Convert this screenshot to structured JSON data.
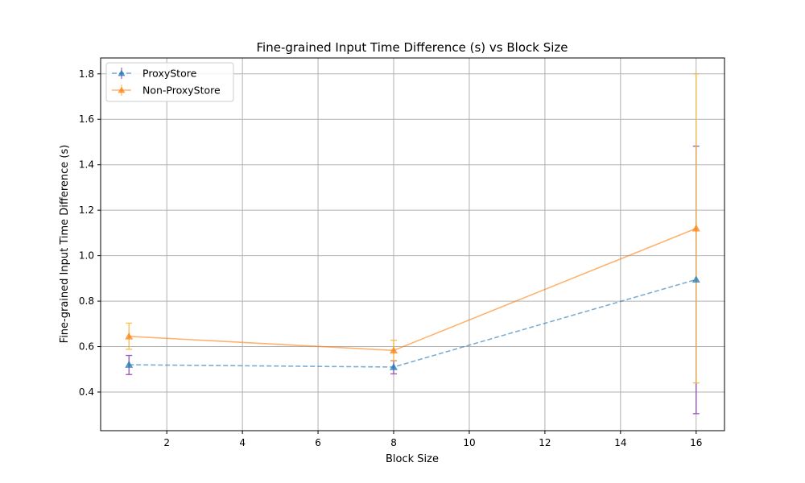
{
  "chart_data": {
    "type": "line",
    "title": "Fine-grained Input Time Difference (s) vs Block Size",
    "xlabel": "Block Size",
    "ylabel": "Fine-grained Input Time Difference (s)",
    "xlim": [
      0.25,
      16.75
    ],
    "ylim": [
      0.23,
      1.87
    ],
    "xticks": [
      2,
      4,
      6,
      8,
      10,
      12,
      14,
      16
    ],
    "yticks": [
      0.4,
      0.6,
      0.8,
      1.0,
      1.2,
      1.4,
      1.6,
      1.8
    ],
    "grid": true,
    "legend_position": "top-left",
    "x": [
      1,
      8,
      16
    ],
    "series": [
      {
        "name": "ProxyStore",
        "values": [
          0.52,
          0.51,
          0.895
        ],
        "error_low": [
          0.477,
          0.48,
          0.305
        ],
        "error_high": [
          0.561,
          0.538,
          1.482
        ],
        "color": "#1f77b4",
        "errcolor": "#8e44ad",
        "dash": "dashed",
        "marker": "triangle-up"
      },
      {
        "name": "Non-ProxyStore",
        "values": [
          0.645,
          0.583,
          1.12
        ],
        "error_low": [
          0.588,
          0.538,
          0.44
        ],
        "error_high": [
          0.703,
          0.628,
          1.8
        ],
        "color": "#ff7f0e",
        "errcolor": "#f5b83d",
        "dash": "solid",
        "marker": "triangle-up"
      }
    ]
  }
}
